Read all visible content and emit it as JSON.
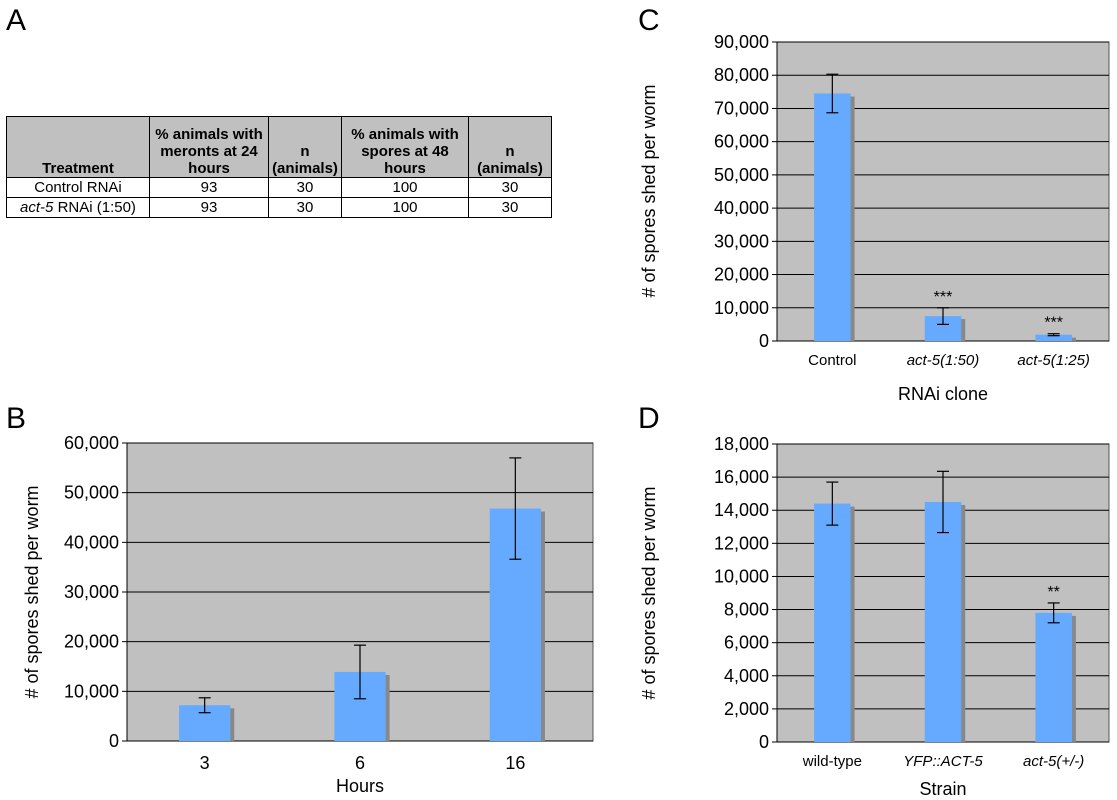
{
  "panels": {
    "a": "A",
    "b": "B",
    "c": "C",
    "d": "D"
  },
  "table": {
    "headers": [
      "Treatment",
      "% animals with meronts at 24 hours",
      "n (animals)",
      "% animals with spores at 48 hours",
      "n (animals)"
    ],
    "rows": [
      {
        "treatment_italic": "",
        "treatment_rest": "Control RNAi",
        "meronts": "93",
        "n1": "30",
        "spores": "100",
        "n2": "30"
      },
      {
        "treatment_italic": "act-5",
        "treatment_rest": " RNAi (1:50)",
        "meronts": "93",
        "n1": "30",
        "spores": "100",
        "n2": "30"
      }
    ]
  },
  "colors": {
    "bar": "#66aaff",
    "bar_shadow": "#888888",
    "plot_bg": "#c0c0c0",
    "gridline": "#000000"
  },
  "chart_data": [
    {
      "panel": "B",
      "type": "bar",
      "title": "",
      "categories": [
        "3",
        "6",
        "16"
      ],
      "italic_categories": false,
      "values": [
        7200,
        13900,
        46800
      ],
      "errors": [
        1500,
        5400,
        10200
      ],
      "annotations": [
        "",
        "",
        ""
      ],
      "xlabel": "Hours",
      "ylabel": "# of spores shed per worm",
      "ylim": [
        0,
        60000
      ],
      "yticks": [
        0,
        10000,
        20000,
        30000,
        40000,
        50000,
        60000
      ],
      "ytick_labels": [
        "0",
        "10,000",
        "20,000",
        "30,000",
        "40,000",
        "50,000",
        "60,000"
      ],
      "grid": true
    },
    {
      "panel": "C",
      "type": "bar",
      "title": "",
      "categories": [
        "Control",
        "act-5(1:50)",
        "act-5(1:25)"
      ],
      "italic_categories": [
        false,
        true,
        true
      ],
      "values": [
        74500,
        7500,
        1900
      ],
      "errors": [
        5800,
        2500,
        300
      ],
      "annotations": [
        "",
        "***",
        "***"
      ],
      "xlabel": "RNAi clone",
      "ylabel": "# of spores shed per worm",
      "ylim": [
        0,
        90000
      ],
      "yticks": [
        0,
        10000,
        20000,
        30000,
        40000,
        50000,
        60000,
        70000,
        80000,
        90000
      ],
      "ytick_labels": [
        "0",
        "10,000",
        "20,000",
        "30,000",
        "40,000",
        "50,000",
        "60,000",
        "70,000",
        "80,000",
        "90,000"
      ],
      "grid": true
    },
    {
      "panel": "D",
      "type": "bar",
      "title": "",
      "categories": [
        "wild-type",
        "YFP::ACT-5",
        "act-5(+/-)"
      ],
      "italic_categories": [
        false,
        true,
        true
      ],
      "values": [
        14400,
        14500,
        7800
      ],
      "errors": [
        1300,
        1850,
        600
      ],
      "annotations": [
        "",
        "",
        "**"
      ],
      "xlabel": "Strain",
      "ylabel": "# of spores shed per worm",
      "ylim": [
        0,
        18000
      ],
      "yticks": [
        0,
        2000,
        4000,
        6000,
        8000,
        10000,
        12000,
        14000,
        16000,
        18000
      ],
      "ytick_labels": [
        "0",
        "2,000",
        "4,000",
        "6,000",
        "8,000",
        "10,000",
        "12,000",
        "14,000",
        "16,000",
        "18,000"
      ],
      "grid": true
    }
  ]
}
